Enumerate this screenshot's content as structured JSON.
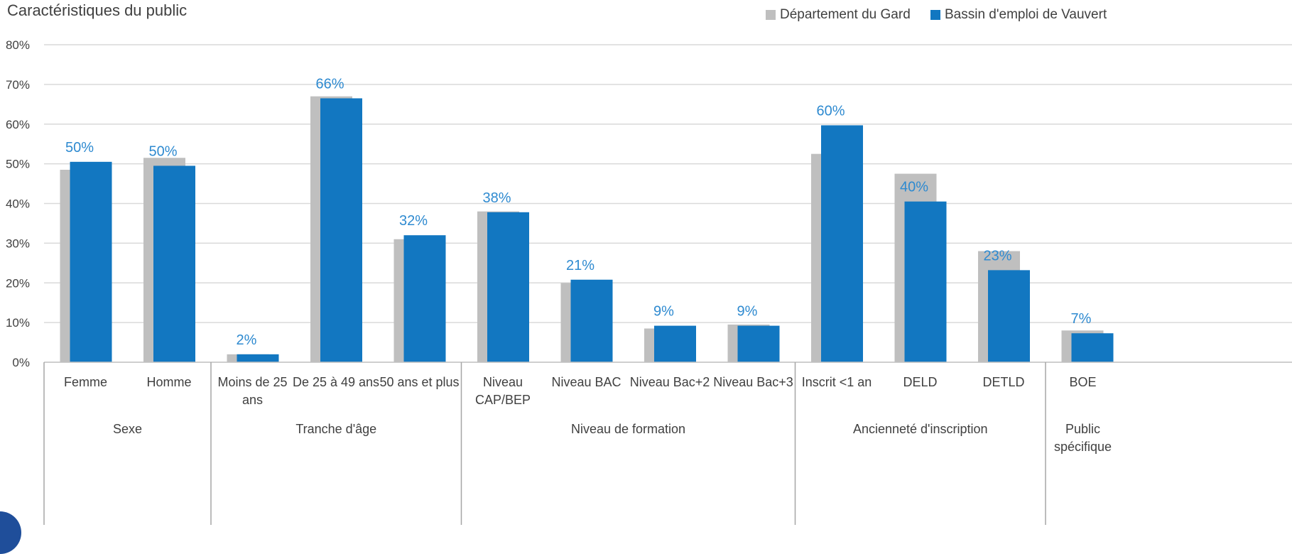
{
  "chart_data": {
    "type": "bar",
    "title": "Caractéristiques du public",
    "xlabel": "",
    "ylabel": "",
    "ylim": [
      0,
      80
    ],
    "yticks": [
      "0%",
      "10%",
      "20%",
      "30%",
      "40%",
      "50%",
      "60%",
      "70%",
      "80%"
    ],
    "grid": true,
    "legend_position": "top-right",
    "categories": [
      "Femme",
      "Homme",
      "Moins de 25 ans",
      "De 25 à 49 ans",
      "50 ans et plus",
      "Niveau CAP/BEP",
      "Niveau BAC",
      "Niveau Bac+2",
      "Niveau Bac+3",
      "Inscrit <1 an",
      "DELD",
      "DETLD",
      "BOE"
    ],
    "category_lines": [
      [
        "Femme"
      ],
      [
        "Homme"
      ],
      [
        "Moins de 25",
        "ans"
      ],
      [
        "De 25 à 49 ans"
      ],
      [
        "50 ans et plus"
      ],
      [
        "Niveau",
        "CAP/BEP"
      ],
      [
        "Niveau BAC"
      ],
      [
        "Niveau Bac+2"
      ],
      [
        "Niveau Bac+3"
      ],
      [
        "Inscrit <1 an"
      ],
      [
        "DELD"
      ],
      [
        "DETLD"
      ],
      [
        "BOE"
      ]
    ],
    "groups": [
      {
        "label": "Sexe",
        "lines": [
          "Sexe"
        ],
        "count": 2
      },
      {
        "label": "Tranche d'âge",
        "lines": [
          "Tranche d'âge"
        ],
        "count": 3
      },
      {
        "label": "Niveau de formation",
        "lines": [
          "Niveau de formation"
        ],
        "count": 4
      },
      {
        "label": "Ancienneté d'inscription",
        "lines": [
          "Ancienneté d'inscription"
        ],
        "count": 3
      },
      {
        "label": "Public spécifique",
        "lines": [
          "Public",
          "spécifique"
        ],
        "count": 1
      }
    ],
    "series": [
      {
        "name": "Département du Gard",
        "color": "#bfbfbf",
        "values": [
          48.5,
          51.5,
          2,
          67,
          31,
          38,
          20,
          8.5,
          9.5,
          52.5,
          47.5,
          28,
          8
        ]
      },
      {
        "name": "Bassin d'emploi de Vauvert",
        "color": "#1277c1",
        "values": [
          50.5,
          49.5,
          2,
          66.5,
          32,
          37.8,
          20.8,
          9.2,
          9.2,
          59.7,
          40.5,
          23.2,
          7.3
        ]
      }
    ],
    "data_labels": [
      "50%",
      "50%",
      "2%",
      "66%",
      "32%",
      "38%",
      "21%",
      "9%",
      "9%",
      "60%",
      "40%",
      "23%",
      "7%"
    ],
    "data_label_color": "#2e8ad0"
  }
}
